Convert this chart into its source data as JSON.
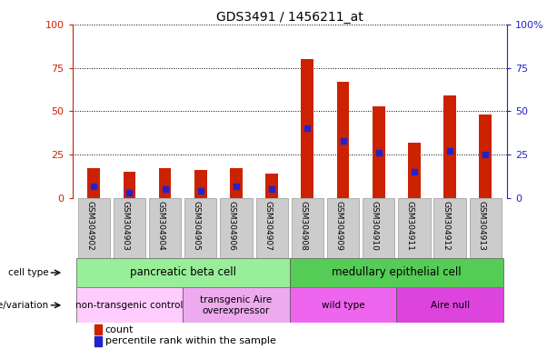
{
  "title": "GDS3491 / 1456211_at",
  "samples": [
    "GSM304902",
    "GSM304903",
    "GSM304904",
    "GSM304905",
    "GSM304906",
    "GSM304907",
    "GSM304908",
    "GSM304909",
    "GSM304910",
    "GSM304911",
    "GSM304912",
    "GSM304913"
  ],
  "count_values": [
    17,
    15,
    17,
    16,
    17,
    14,
    80,
    67,
    53,
    32,
    59,
    48
  ],
  "percentile_values": [
    7,
    3,
    5,
    4,
    7,
    5,
    40,
    33,
    26,
    15,
    27,
    25
  ],
  "bar_color": "#cc2200",
  "percentile_color": "#2222cc",
  "ylim": [
    0,
    100
  ],
  "yticks": [
    0,
    25,
    50,
    75,
    100
  ],
  "left_tick_color": "#cc2200",
  "right_tick_color": "#2222cc",
  "bar_width": 0.35,
  "marker_size": 4.5,
  "cell_type_groups": [
    {
      "label": "pancreatic beta cell",
      "start": 0,
      "end": 5,
      "color": "#99ee99"
    },
    {
      "label": "medullary epithelial cell",
      "start": 6,
      "end": 11,
      "color": "#55cc55"
    }
  ],
  "genotype_groups": [
    {
      "label": "non-transgenic control",
      "start": 0,
      "end": 2,
      "color": "#ffccff"
    },
    {
      "label": "transgenic Aire\noverexpressor",
      "start": 3,
      "end": 5,
      "color": "#eeaaee"
    },
    {
      "label": "wild type",
      "start": 6,
      "end": 8,
      "color": "#ee66ee"
    },
    {
      "label": "Aire null",
      "start": 9,
      "end": 11,
      "color": "#dd44dd"
    }
  ],
  "legend_count_label": "count",
  "legend_percentile_label": "percentile rank within the sample",
  "cell_type_row_label": "cell type",
  "genotype_row_label": "genotype/variation",
  "xtick_bg_color": "#cccccc",
  "plot_bg_color": "#ffffff"
}
